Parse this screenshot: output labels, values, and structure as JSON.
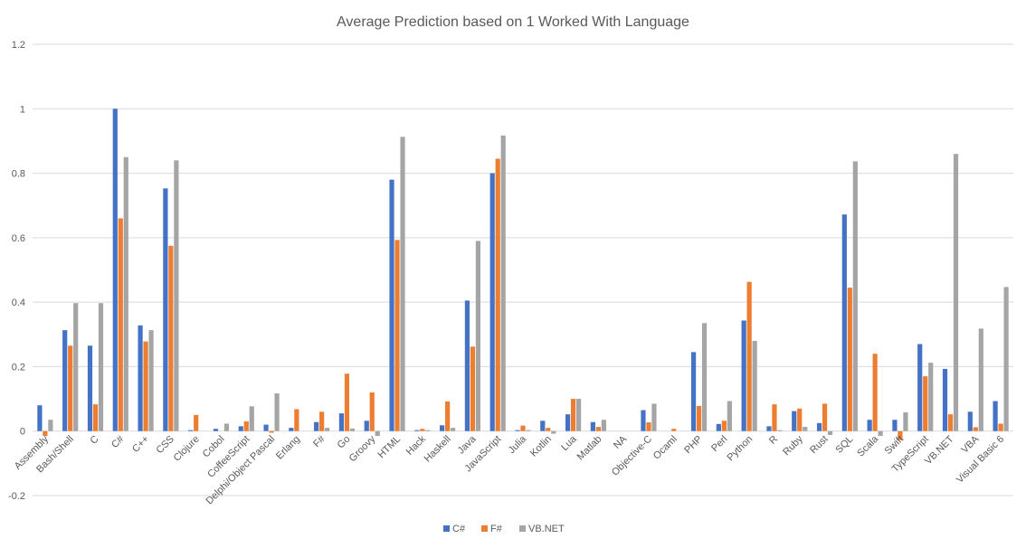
{
  "chart_data": {
    "type": "bar",
    "title": "Average Prediction based on 1 Worked With Language",
    "xlabel": "",
    "ylabel": "",
    "ylim": [
      -0.2,
      1.2
    ],
    "yticks": [
      -0.2,
      0,
      0.2,
      0.4,
      0.6,
      0.8,
      1,
      1.2
    ],
    "ytick_labels": [
      "-0.2",
      "0",
      "0.2",
      "0.4",
      "0.6",
      "0.8",
      "1",
      "1.2"
    ],
    "grid": true,
    "legend_position": "bottom",
    "categories": [
      "Assembly",
      "Bash/Shell",
      "C",
      "C#",
      "C++",
      "CSS",
      "Clojure",
      "Cobol",
      "CoffeeScript",
      "Delphi/Object Pascal",
      "Erlang",
      "F#",
      "Go",
      "Groovy",
      "HTML",
      "Hack",
      "Haskell",
      "Java",
      "JavaScript",
      "Julia",
      "Kotlin",
      "Lua",
      "Matlab",
      "NA",
      "Objective-C",
      "Ocaml",
      "PHP",
      "Perl",
      "Python",
      "R",
      "Ruby",
      "Rust",
      "SQL",
      "Scala",
      "Swift",
      "TypeScript",
      "VB.NET",
      "VBA",
      "Visual Basic 6"
    ],
    "series": [
      {
        "name": "C#",
        "color": "#4472c4",
        "values": [
          0.08,
          0.313,
          0.265,
          1.0,
          0.328,
          0.753,
          0.003,
          0.007,
          0.015,
          0.02,
          0.01,
          0.028,
          0.055,
          0.032,
          0.78,
          0.003,
          0.018,
          0.405,
          0.8,
          0.003,
          0.032,
          0.052,
          0.028,
          0.0,
          0.065,
          0.0,
          0.245,
          0.022,
          0.343,
          0.015,
          0.062,
          0.025,
          0.672,
          0.035,
          0.035,
          0.27,
          0.193,
          0.06,
          0.093
        ]
      },
      {
        "name": "F#",
        "color": "#ed7d31",
        "values": [
          -0.015,
          0.265,
          0.083,
          0.66,
          0.278,
          0.575,
          0.05,
          0.0,
          0.03,
          -0.005,
          0.068,
          0.06,
          0.178,
          0.12,
          0.593,
          0.007,
          0.092,
          0.262,
          0.845,
          0.017,
          0.01,
          0.1,
          0.013,
          0.0,
          0.027,
          0.007,
          0.078,
          0.032,
          0.463,
          0.083,
          0.07,
          0.085,
          0.445,
          0.24,
          -0.028,
          0.17,
          0.052,
          0.012,
          0.023
        ]
      },
      {
        "name": "VB.NET",
        "color": "#a5a5a5",
        "values": [
          0.035,
          0.397,
          0.397,
          0.85,
          0.313,
          0.84,
          0.0,
          0.023,
          0.077,
          0.117,
          0.0,
          0.01,
          0.008,
          -0.015,
          0.913,
          0.003,
          0.01,
          0.59,
          0.917,
          0.003,
          -0.008,
          0.1,
          0.035,
          0.0,
          0.085,
          0.0,
          0.335,
          0.093,
          0.28,
          0.003,
          0.013,
          -0.012,
          0.837,
          -0.015,
          0.058,
          0.212,
          0.86,
          0.318,
          0.447
        ]
      }
    ]
  }
}
